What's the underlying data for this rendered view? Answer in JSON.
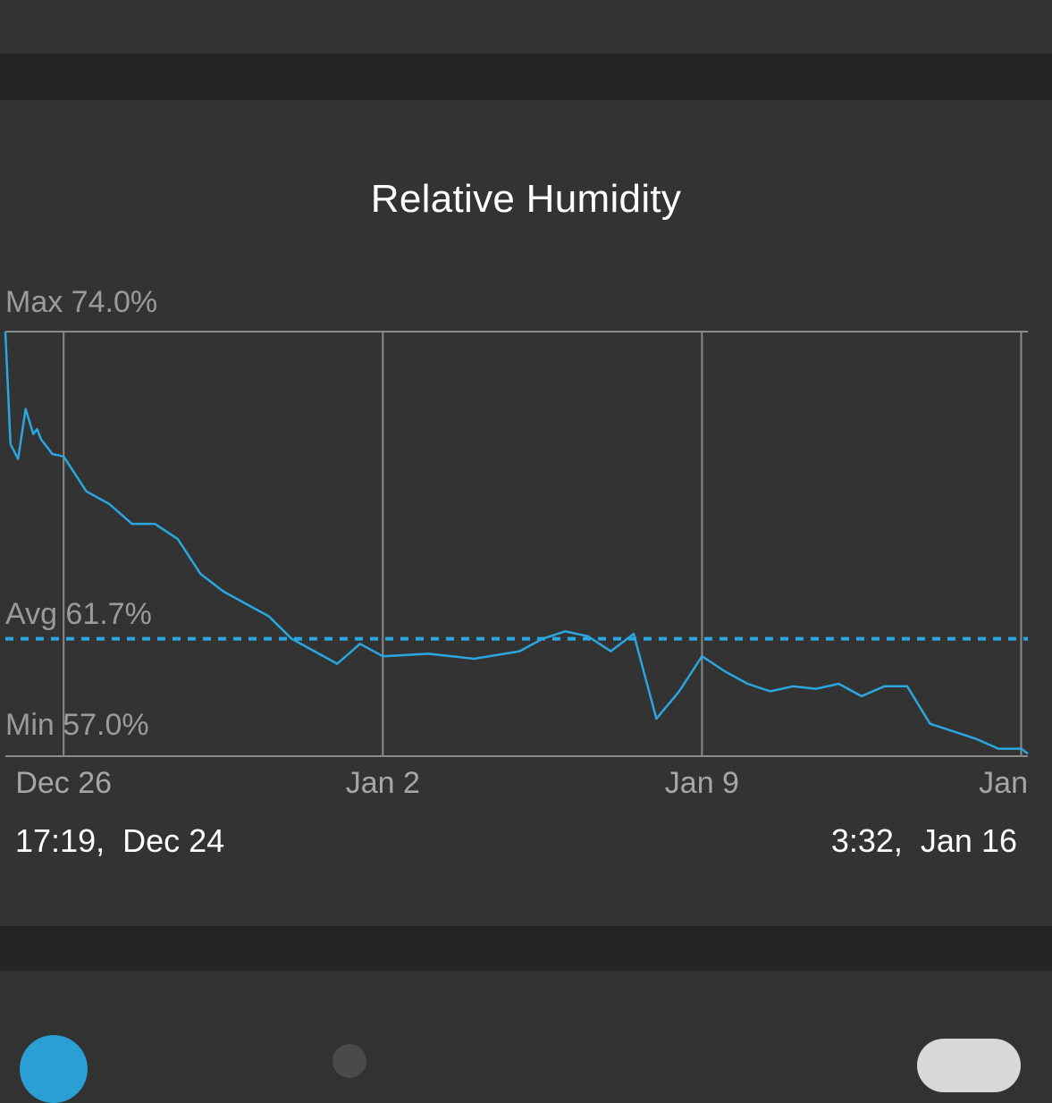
{
  "colors": {
    "background": "#323232",
    "band": "#242424",
    "line": "#2aa6e0",
    "grid": "#8a8a8a",
    "text": "#ffffff",
    "label": "#9b9b9b"
  },
  "range": {
    "start": "17:19,  Dec 24",
    "end": "3:32,  Jan 16"
  },
  "stats": {
    "max_label": "Max 74.0%",
    "avg_label": "Avg 61.7%",
    "min_label": "Min 57.0%"
  },
  "chart_data": {
    "type": "line",
    "title": "Relative Humidity",
    "xlabel": "",
    "ylabel": "",
    "x_ticks": [
      "Dec 26",
      "Jan 2",
      "Jan 9",
      "Jan"
    ],
    "ylim": [
      57.0,
      74.0
    ],
    "avg": 61.7,
    "grid": true,
    "series": [
      {
        "x": [
          "2023-12-24 17:19",
          "2023-12-24 20:00",
          "2023-12-25 00:00",
          "2023-12-25 04:00",
          "2023-12-25 08:00",
          "2023-12-25 10:00",
          "2023-12-25 12:00",
          "2023-12-25 16:00",
          "2023-12-25 18:00",
          "2023-12-26 00:00",
          "2023-12-26 12:00",
          "2023-12-27 00:00",
          "2023-12-27 12:00",
          "2023-12-28 00:00",
          "2023-12-28 12:00",
          "2023-12-29 00:00",
          "2023-12-29 12:00",
          "2023-12-30 00:00",
          "2023-12-30 12:00",
          "2023-12-31 00:00",
          "2023-12-31 12:00",
          "2024-01-01 00:00",
          "2024-01-01 12:00",
          "2024-01-02 00:00",
          "2024-01-03 00:00",
          "2024-01-04 00:00",
          "2024-01-05 00:00",
          "2024-01-05 12:00",
          "2024-01-06 00:00",
          "2024-01-06 12:00",
          "2024-01-07 00:00",
          "2024-01-07 12:00",
          "2024-01-08 00:00",
          "2024-01-08 12:00",
          "2024-01-09 00:00",
          "2024-01-09 12:00",
          "2024-01-10 00:00",
          "2024-01-10 12:00",
          "2024-01-11 00:00",
          "2024-01-11 12:00",
          "2024-01-12 00:00",
          "2024-01-12 12:00",
          "2024-01-13 00:00",
          "2024-01-13 12:00",
          "2024-01-14 00:00",
          "2024-01-14 12:00",
          "2024-01-15 00:00",
          "2024-01-15 12:00",
          "2024-01-16 00:00",
          "2024-01-16 03:32"
        ],
        "y": [
          74.0,
          69.5,
          68.9,
          70.9,
          69.9,
          70.1,
          69.7,
          69.3,
          69.1,
          69.0,
          67.6,
          67.1,
          66.3,
          66.3,
          65.7,
          64.3,
          63.6,
          63.1,
          62.6,
          61.7,
          61.2,
          60.7,
          61.5,
          61.0,
          61.1,
          60.9,
          61.2,
          61.7,
          62.0,
          61.8,
          61.2,
          61.9,
          58.5,
          59.6,
          61.0,
          60.4,
          59.9,
          59.6,
          59.8,
          59.7,
          59.9,
          59.4,
          59.8,
          59.8,
          58.3,
          58.0,
          57.7,
          57.3,
          57.3,
          57.1
        ]
      }
    ]
  }
}
